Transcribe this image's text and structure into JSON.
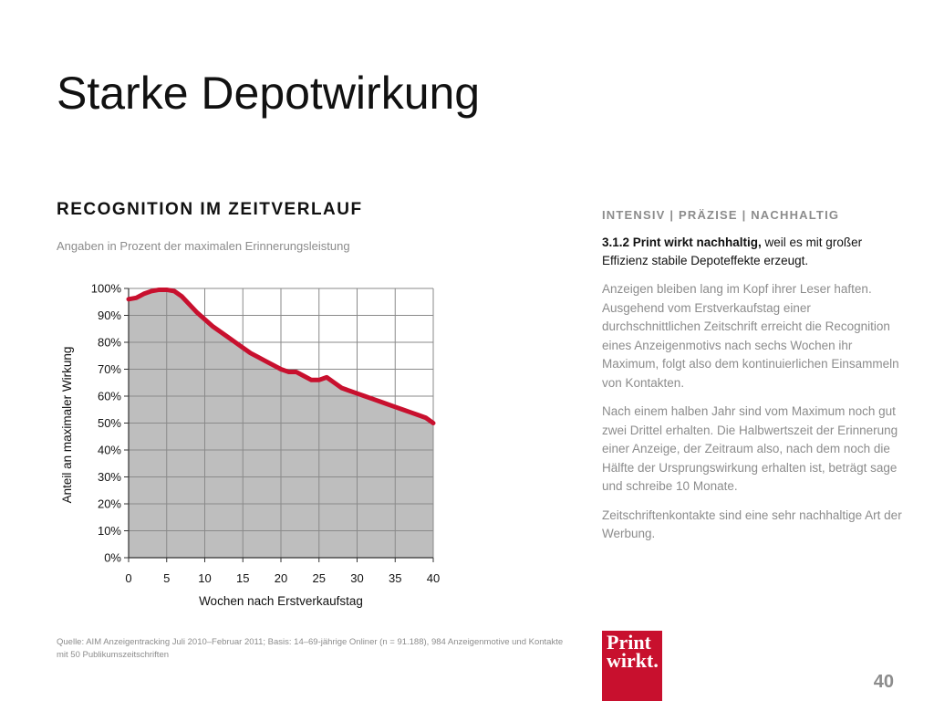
{
  "slide": {
    "title": "Starke Depotwirkung",
    "page_number": "40"
  },
  "chart_data": {
    "type": "area",
    "title": "RECOGNITION IM ZEITVERLAUF",
    "subtitle": "Angaben in Prozent der maximalen Erinnerungsleistung",
    "xlabel": "Wochen nach Erstverkaufstag",
    "ylabel": "Anteil an maximaler Wirkung",
    "xlim": [
      0,
      40
    ],
    "ylim": [
      0,
      100
    ],
    "x_ticks": [
      "0",
      "5",
      "10",
      "15",
      "20",
      "25",
      "30",
      "35",
      "40"
    ],
    "y_ticks": [
      "0%",
      "10%",
      "20%",
      "30%",
      "40%",
      "50%",
      "60%",
      "70%",
      "80%",
      "90%",
      "100%"
    ],
    "grid": true,
    "fill_color": "#bebebe",
    "line_color": "#c8102e",
    "series": [
      {
        "x": [
          0,
          1,
          2,
          3,
          4,
          5,
          6,
          7,
          8,
          9,
          10,
          11,
          12,
          13,
          14,
          15,
          16,
          17,
          18,
          19,
          20,
          21,
          22,
          23,
          24,
          25,
          26,
          27,
          28,
          29,
          30,
          31,
          32,
          33,
          34,
          35,
          36,
          37,
          38,
          39,
          40
        ],
        "y": [
          96,
          96.5,
          98,
          99,
          99.5,
          99.5,
          99,
          97,
          94,
          91,
          88.5,
          86,
          84,
          82,
          80,
          78,
          76,
          74.5,
          73,
          71.5,
          70,
          69,
          69,
          67.5,
          66,
          66,
          67,
          65,
          63,
          62,
          61,
          60,
          59,
          58,
          57,
          56,
          55,
          54,
          53,
          52,
          50
        ]
      }
    ]
  },
  "source": "Quelle: AIM Anzeigentracking Juli 2010–Februar 2011; Basis: 14–69-jährige Onliner (n = 91.188), 984 Anzeigenmotive und Kontakte mit 50 Publikumszeitschriften",
  "right_column": {
    "heading": "INTENSIV | PRÄZISE | NACHHALTIG",
    "lead_bold": "3.1.2 Print wirkt nachhaltig,",
    "lead_rest": " weil es mit großer Effizienz stabile Depoteffekte erzeugt.",
    "paragraphs": [
      "Anzeigen bleiben lang im Kopf ihrer Leser haften. Ausgehend vom Erstverkaufstag einer durchschnittlichen Zeitschrift erreicht die Recognition eines Anzeigenmotivs nach sechs Wochen ihr Maximum, folgt also dem kontinuierlichen Einsammeln von Kontakten.",
      "Nach einem halben Jahr sind vom Maximum noch gut zwei Drittel erhalten. Die Halbwertszeit der Erinnerung einer Anzeige, der Zeitraum also, nach dem noch die Hälfte der Ursprungswirkung erhalten ist, beträgt sage und schreibe 10 Monate.",
      "Zeitschriftenkontakte sind eine sehr nachhaltige Art der Werbung."
    ]
  },
  "logo": {
    "line1": "Print",
    "line2": "wirkt.",
    "color": "#c8102e"
  }
}
